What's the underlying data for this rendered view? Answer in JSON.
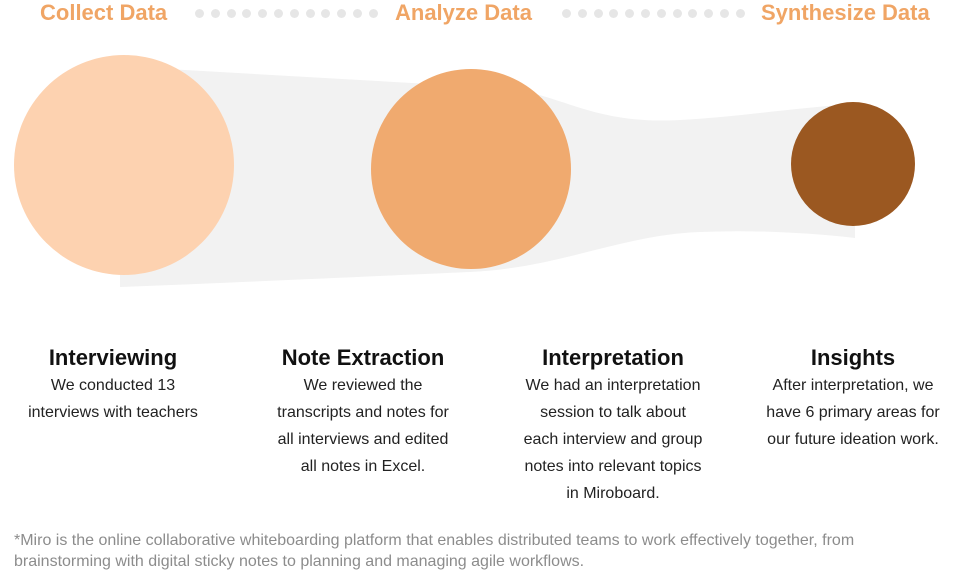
{
  "stages": [
    {
      "label": "Collect Data"
    },
    {
      "label": "Analyze Data"
    },
    {
      "label": "Synthesize Data"
    }
  ],
  "colors": {
    "stage_label": "#f0a565",
    "connector_dot": "#e6e6e6",
    "band": "#f2f2f2",
    "circle_collect": "#fdd2b0",
    "circle_analyze": "#f0aa6f",
    "circle_synthesize": "#9b5821"
  },
  "steps": [
    {
      "title": "Interviewing",
      "lines": [
        "We conducted 13",
        "interviews with teachers"
      ]
    },
    {
      "title": "Note Extraction",
      "lines": [
        "We reviewed the",
        "transcripts and notes for",
        "all interviews and edited",
        "all notes in Excel."
      ]
    },
    {
      "title": "Interpretation",
      "lines": [
        "We had an interpretation",
        "session to talk about",
        "each interview and group",
        "notes into relevant topics",
        "in Miroboard."
      ]
    },
    {
      "title": "Insights",
      "lines": [
        "After interpretation, we",
        "have 6 primary areas for",
        "our future ideation work."
      ]
    }
  ],
  "footnote": "*Miro is the online collaborative whiteboarding platform that enables distributed teams to work effectively together, from brainstorming with digital sticky notes to planning and managing agile workflows."
}
